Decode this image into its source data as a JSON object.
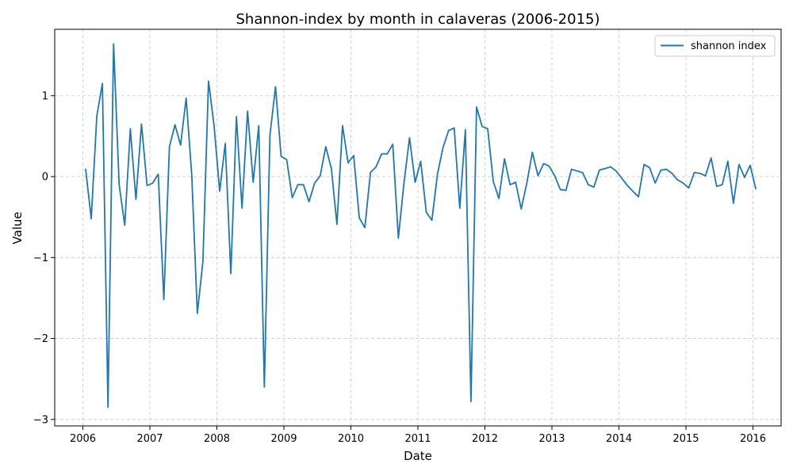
{
  "chart_data": {
    "type": "line",
    "title": "Shannon-index by month in calaveras (2006-2015)",
    "xlabel": "Date",
    "ylabel": "Value",
    "xlim": [
      2005.58,
      2016.42
    ],
    "ylim": [
      -3.08,
      1.82
    ],
    "x_ticks": [
      2006,
      2007,
      2008,
      2009,
      2010,
      2011,
      2012,
      2013,
      2014,
      2015,
      2016
    ],
    "x_tick_labels": [
      "2006",
      "2007",
      "2008",
      "2009",
      "2010",
      "2011",
      "2012",
      "2013",
      "2014",
      "2015",
      "2016"
    ],
    "y_ticks": [
      -3,
      -2,
      -1,
      0,
      1
    ],
    "y_tick_labels": [
      "−3",
      "−2",
      "−1",
      "0",
      "1"
    ],
    "grid": true,
    "legend_position": "top-right",
    "start_year": 2006,
    "start_month": 1,
    "series": [
      {
        "name": "shannon index",
        "color": "#1f77b4",
        "values": [
          0.09,
          -0.52,
          0.75,
          1.15,
          -2.85,
          1.64,
          -0.1,
          -0.6,
          0.59,
          -0.28,
          0.65,
          -0.11,
          -0.08,
          0.03,
          -1.52,
          0.37,
          0.64,
          0.39,
          0.97,
          0.02,
          -1.69,
          -1.05,
          1.18,
          0.63,
          -0.18,
          0.41,
          -1.2,
          0.74,
          -0.39,
          0.81,
          -0.07,
          0.63,
          -2.6,
          0.51,
          1.11,
          0.25,
          0.21,
          -0.26,
          -0.1,
          -0.1,
          -0.31,
          -0.08,
          0.01,
          0.37,
          0.1,
          -0.59,
          0.63,
          0.17,
          0.26,
          -0.51,
          -0.63,
          0.05,
          0.12,
          0.28,
          0.28,
          0.4,
          -0.76,
          -0.08,
          0.48,
          -0.07,
          0.19,
          -0.44,
          -0.54,
          0.03,
          0.36,
          0.57,
          0.6,
          -0.39,
          0.58,
          -2.78,
          0.86,
          0.62,
          0.59,
          -0.06,
          -0.27,
          0.22,
          -0.1,
          -0.07,
          -0.4,
          -0.08,
          0.3,
          0.01,
          0.16,
          0.13,
          0.01,
          -0.16,
          -0.17,
          0.09,
          0.07,
          0.05,
          -0.1,
          -0.13,
          0.08,
          0.1,
          0.12,
          0.07,
          -0.02,
          -0.11,
          -0.18,
          -0.25,
          0.15,
          0.11,
          -0.08,
          0.08,
          0.09,
          0.04,
          -0.04,
          -0.08,
          -0.14,
          0.05,
          0.04,
          0.01,
          0.23,
          -0.12,
          -0.1,
          0.19,
          -0.33,
          0.15,
          -0.01,
          0.14,
          -0.15
        ]
      }
    ]
  }
}
